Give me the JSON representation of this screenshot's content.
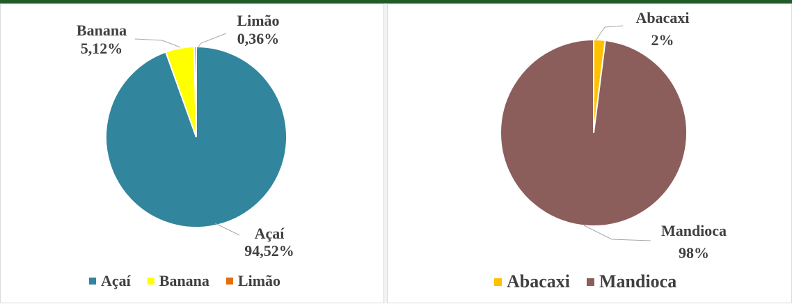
{
  "chart_data": [
    {
      "type": "pie",
      "title": "",
      "categories": [
        "Açaí",
        "Banana",
        "Limão"
      ],
      "values": [
        94.52,
        5.12,
        0.36
      ],
      "colors": [
        "#31859c",
        "#ffff00",
        "#e46c0a"
      ],
      "data_labels": [
        {
          "name": "Açaí",
          "value": "94,52%"
        },
        {
          "name": "Banana",
          "value": "5,12%"
        },
        {
          "name": "Limão",
          "value": "0,36%"
        }
      ],
      "legend": {
        "position": "bottom",
        "items": [
          "Açaí",
          "Banana",
          "Limão"
        ]
      }
    },
    {
      "type": "pie",
      "title": "",
      "categories": [
        "Abacaxi",
        "Mandioca"
      ],
      "values": [
        2,
        98
      ],
      "colors": [
        "#ffc000",
        "#8b5e5c"
      ],
      "data_labels": [
        {
          "name": "Abacaxi",
          "value": "2%"
        },
        {
          "name": "Mandioca",
          "value": "98%"
        }
      ],
      "legend": {
        "position": "bottom",
        "items": [
          "Abacaxi",
          "Mandioca"
        ]
      }
    }
  ]
}
